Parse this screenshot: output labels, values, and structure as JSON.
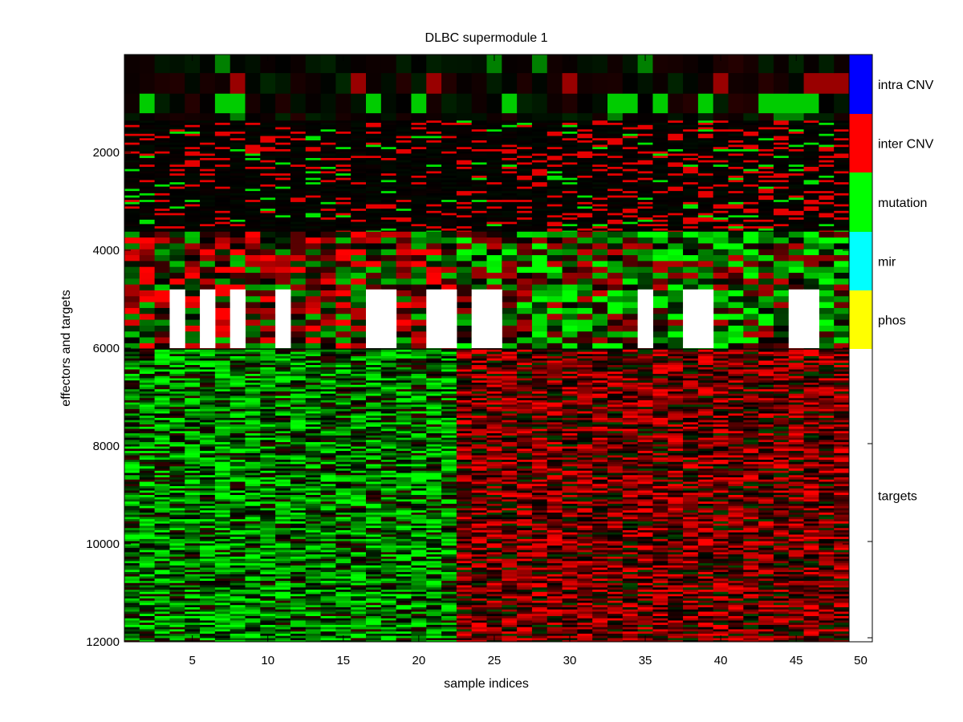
{
  "chart_data": {
    "type": "heatmap",
    "title": "DLBC supermodule 1",
    "xlabel": "sample indices",
    "ylabel": "effectors and targets",
    "xlim": [
      0.5,
      48.5
    ],
    "ylim": [
      1,
      12000
    ],
    "y_reversed": true,
    "x_ticks": [
      5,
      10,
      15,
      20,
      25,
      30,
      35,
      40,
      45
    ],
    "x_tick_labels": [
      "5",
      "10",
      "15",
      "20",
      "25",
      "30",
      "35",
      "40",
      "45"
    ],
    "y_ticks": [
      2000,
      4000,
      6000,
      8000,
      10000,
      12000
    ],
    "y_tick_labels": [
      "2000",
      "4000",
      "6000",
      "8000",
      "10000",
      "12000"
    ],
    "colormap": {
      "low": "#00ff00",
      "mid": "#000000",
      "high": "#ff0000"
    },
    "missing_color": "#ffffff",
    "row_groups": [
      {
        "name": "intra CNV",
        "start": 1,
        "end": 1350
      },
      {
        "name": "inter CNV",
        "start": 1350,
        "end": 3620
      },
      {
        "name": "mutation",
        "start": 3620,
        "end": 4800
      },
      {
        "name": "mir",
        "start": 4800,
        "end": 6000
      },
      {
        "name": "phos",
        "start": 6000,
        "end": 6030
      },
      {
        "name": "targets",
        "start": 6030,
        "end": 12000
      }
    ],
    "samples_missing_in_block": [
      4,
      6,
      8,
      11,
      17,
      18,
      21,
      22,
      24,
      25,
      35,
      38,
      39,
      45,
      46
    ],
    "missing_block_rows": [
      4800,
      6000
    ],
    "target_split_sample": 22.5,
    "sidebar": {
      "labels": [
        "intra CNV",
        "inter CNV",
        "mutation",
        "mir",
        "phos",
        "targets"
      ],
      "colors": [
        "#0000ff",
        "#ff0000",
        "#00ff00",
        "#00ffff",
        "#ffff00",
        "#ffffff"
      ],
      "ticks": [
        7,
        8,
        9,
        10,
        11
      ],
      "max_label": "50"
    }
  }
}
